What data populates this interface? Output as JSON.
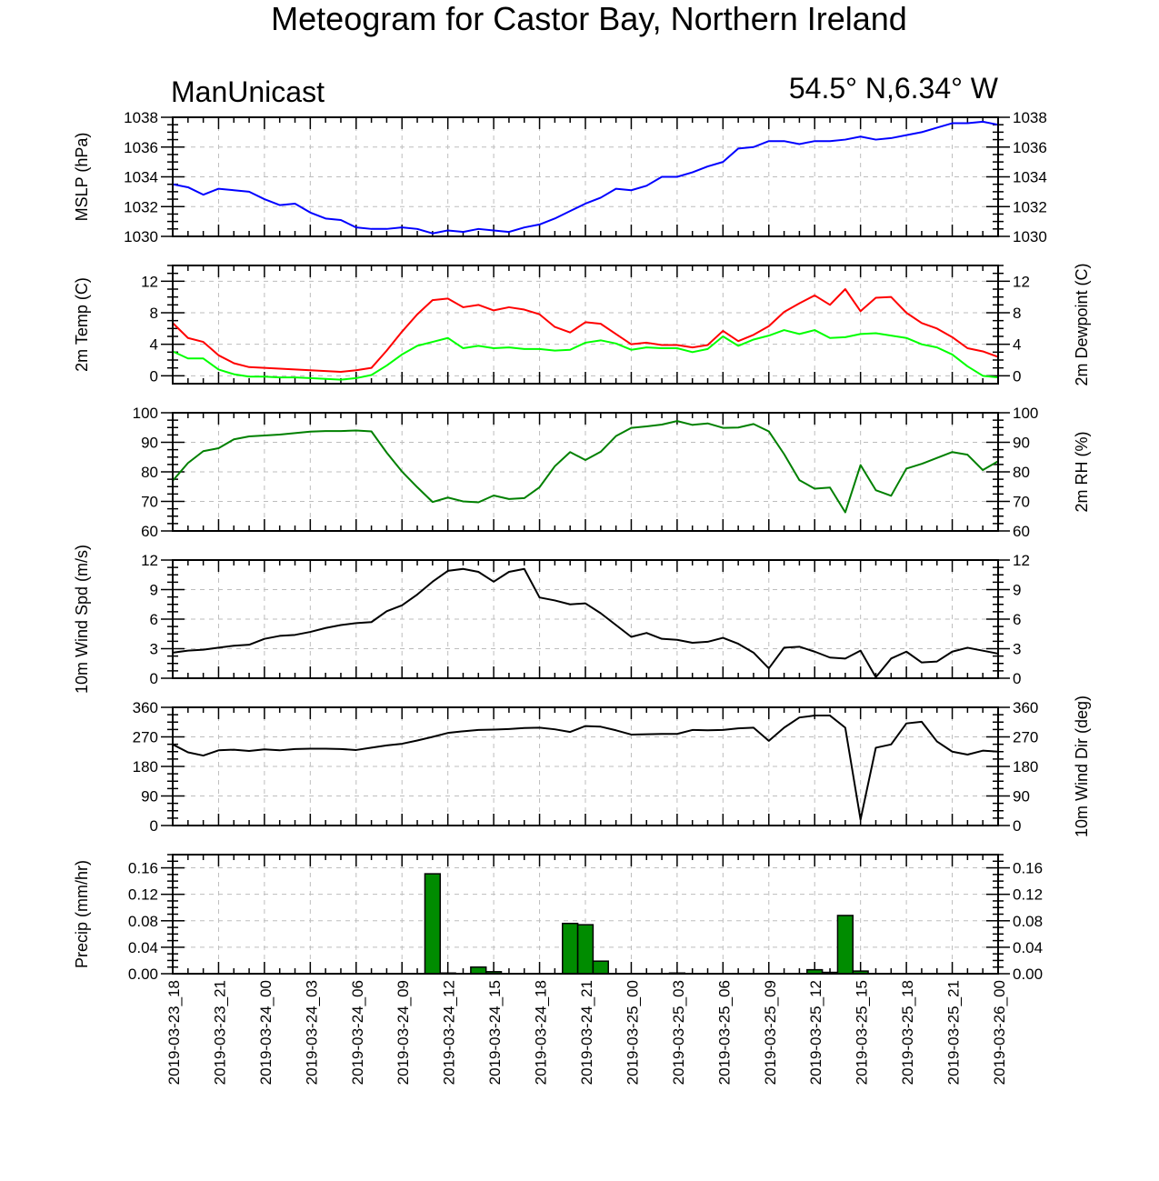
{
  "title": "Meteogram for Castor Bay, Northern Ireland",
  "model": "ManUnicast",
  "location": "54.5° N,6.34° W",
  "colors": {
    "mslp": "#0000ff",
    "temp": "#ff0000",
    "dew": "#00ff00",
    "rh": "#008000",
    "black": "#000000",
    "bar": "#008c00"
  },
  "chart_data": [
    {
      "type": "line",
      "name": "mslp",
      "ylabel": "MSLP (hPa)",
      "ylabel_right": "",
      "ylim": [
        1030,
        1038
      ],
      "ticks": [
        1030,
        1032,
        1034,
        1036,
        1038
      ],
      "series": [
        {
          "color_key": "mslp",
          "values": [
            1033.5,
            1033.3,
            1032.8,
            1033.2,
            1033.1,
            1033.0,
            1032.5,
            1032.1,
            1032.2,
            1031.6,
            1031.2,
            1031.1,
            1030.6,
            1030.5,
            1030.5,
            1030.6,
            1030.5,
            1030.2,
            1030.4,
            1030.3,
            1030.5,
            1030.4,
            1030.3,
            1030.6,
            1030.8,
            1031.2,
            1031.7,
            1032.2,
            1032.6,
            1033.2,
            1033.1,
            1033.4,
            1034.0,
            1034.0,
            1034.3,
            1034.7,
            1035.0,
            1035.9,
            1036.0,
            1036.4,
            1036.4,
            1036.2,
            1036.4,
            1036.4,
            1036.5,
            1036.7,
            1036.5,
            1036.6,
            1036.8,
            1037.0,
            1037.3,
            1037.6,
            1037.6,
            1037.7,
            1037.5
          ]
        }
      ]
    },
    {
      "type": "line",
      "name": "temp",
      "ylabel": "2m Temp (C)",
      "ylabel_right": "2m Dewpoint (C)",
      "ylim": [
        -1,
        14
      ],
      "ticks": [
        0,
        4,
        8,
        12
      ],
      "series": [
        {
          "color_key": "temp",
          "values": [
            6.7,
            4.8,
            4.3,
            2.6,
            1.6,
            1.1,
            1.0,
            0.9,
            0.8,
            0.7,
            0.6,
            0.5,
            0.7,
            1.0,
            3.2,
            5.6,
            7.8,
            9.6,
            9.8,
            8.7,
            9.0,
            8.3,
            8.7,
            8.4,
            7.8,
            6.2,
            5.5,
            6.8,
            6.6,
            5.3,
            4.0,
            4.2,
            3.9,
            3.9,
            3.6,
            3.9,
            5.7,
            4.4,
            5.2,
            6.3,
            8.1,
            9.2,
            10.2,
            9.0,
            11.0,
            8.2,
            9.9,
            10.0,
            8.0,
            6.7,
            6.0,
            4.9,
            3.5,
            3.1,
            2.4
          ]
        },
        {
          "color_key": "dew",
          "values": [
            3.1,
            2.2,
            2.2,
            0.8,
            0.2,
            -0.1,
            -0.1,
            -0.2,
            -0.2,
            -0.3,
            -0.4,
            -0.5,
            -0.3,
            0.1,
            1.3,
            2.7,
            3.8,
            4.3,
            4.8,
            3.5,
            3.8,
            3.5,
            3.6,
            3.4,
            3.4,
            3.2,
            3.3,
            4.2,
            4.5,
            4.1,
            3.3,
            3.6,
            3.5,
            3.5,
            3.0,
            3.4,
            5.0,
            3.8,
            4.6,
            5.1,
            5.8,
            5.3,
            5.8,
            4.8,
            4.9,
            5.3,
            5.4,
            5.1,
            4.8,
            4.0,
            3.6,
            2.7,
            1.2,
            0.0,
            -0.2
          ]
        }
      ]
    },
    {
      "type": "line",
      "name": "rh",
      "ylabel": "",
      "ylabel_right": "2m RH (%)",
      "ylim": [
        60,
        100
      ],
      "ticks": [
        60,
        70,
        80,
        90,
        100
      ],
      "series": [
        {
          "color_key": "rh",
          "values": [
            77,
            83,
            87,
            88,
            91,
            92,
            92.3,
            92.6,
            93.1,
            93.6,
            93.8,
            93.8,
            94.0,
            93.7,
            86.5,
            80.1,
            74.8,
            69.8,
            71.3,
            70.0,
            69.7,
            72.0,
            70.8,
            71.1,
            74.8,
            81.9,
            86.7,
            84.0,
            86.8,
            92.1,
            94.9,
            95.4,
            96.0,
            97.2,
            95.9,
            96.4,
            94.9,
            95.0,
            96.2,
            93.7,
            86.0,
            77.2,
            74.3,
            74.7,
            66.3,
            82.3,
            73.8,
            71.9,
            81.1,
            82.7,
            84.7,
            86.7,
            85.8,
            80.6,
            83.6
          ]
        }
      ]
    },
    {
      "type": "line",
      "name": "wspd",
      "ylabel": "10m Wind Spd (m/s)",
      "ylabel_right": "",
      "ylim": [
        0,
        12
      ],
      "ticks": [
        0,
        3,
        6,
        9,
        12
      ],
      "series": [
        {
          "color_key": "black",
          "values": [
            2.6,
            2.8,
            2.9,
            3.1,
            3.3,
            3.4,
            4.0,
            4.3,
            4.4,
            4.7,
            5.1,
            5.4,
            5.6,
            5.7,
            6.8,
            7.4,
            8.5,
            9.8,
            10.9,
            11.1,
            10.8,
            9.8,
            10.8,
            11.1,
            8.2,
            7.9,
            7.5,
            7.6,
            6.6,
            5.4,
            4.2,
            4.6,
            4.0,
            3.9,
            3.6,
            3.7,
            4.1,
            3.5,
            2.6,
            1.0,
            3.1,
            3.2,
            2.7,
            2.1,
            2.0,
            2.8,
            0.1,
            2.0,
            2.7,
            1.6,
            1.7,
            2.7,
            3.1,
            2.8,
            2.5
          ]
        }
      ]
    },
    {
      "type": "line",
      "name": "wdir",
      "ylabel": "",
      "ylabel_right": "10m Wind Dir (deg)",
      "ylim": [
        0,
        360
      ],
      "ticks": [
        0,
        90,
        180,
        270,
        360
      ],
      "series": [
        {
          "color_key": "black",
          "values": [
            247,
            223,
            213,
            229,
            231,
            227,
            232,
            229,
            233,
            234,
            234,
            233,
            230,
            237,
            244,
            249,
            259,
            270,
            282,
            287,
            291,
            292,
            294,
            297,
            298,
            293,
            285,
            303,
            301,
            290,
            277,
            278,
            279,
            279,
            291,
            290,
            291,
            296,
            298,
            258,
            298,
            329,
            335,
            335,
            298,
            18,
            237,
            247,
            311,
            316,
            256,
            225,
            216,
            228,
            225
          ]
        }
      ]
    },
    {
      "type": "bar",
      "name": "precip",
      "ylabel": "Precip (mm/hr)",
      "ylabel_right": "",
      "ylim": [
        0,
        0.18
      ],
      "ticks": [
        0.0,
        0.04,
        0.08,
        0.12,
        0.16
      ],
      "tick_labels": [
        "0.00",
        "0.04",
        "0.08",
        "0.12",
        "0.16"
      ],
      "bars": [
        {
          "index": 17,
          "value": 0.151
        },
        {
          "index": 18,
          "value": 0.001
        },
        {
          "index": 20,
          "value": 0.01
        },
        {
          "index": 21,
          "value": 0.003
        },
        {
          "index": 26,
          "value": 0.076
        },
        {
          "index": 27,
          "value": 0.074
        },
        {
          "index": 28,
          "value": 0.019
        },
        {
          "index": 33,
          "value": 0.001
        },
        {
          "index": 42,
          "value": 0.006
        },
        {
          "index": 43,
          "value": 0.002
        },
        {
          "index": 44,
          "value": 0.088
        },
        {
          "index": 45,
          "value": 0.004
        }
      ]
    }
  ],
  "x_axis": {
    "n_points": 55,
    "points_per_label": 3,
    "labels": [
      "2019-03-23_18",
      "2019-03-23_21",
      "2019-03-24_00",
      "2019-03-24_03",
      "2019-03-24_06",
      "2019-03-24_09",
      "2019-03-24_12",
      "2019-03-24_15",
      "2019-03-24_18",
      "2019-03-24_21",
      "2019-03-25_00",
      "2019-03-25_03",
      "2019-03-25_06",
      "2019-03-25_09",
      "2019-03-25_12",
      "2019-03-25_15",
      "2019-03-25_18",
      "2019-03-25_21",
      "2019-03-26_00"
    ]
  }
}
